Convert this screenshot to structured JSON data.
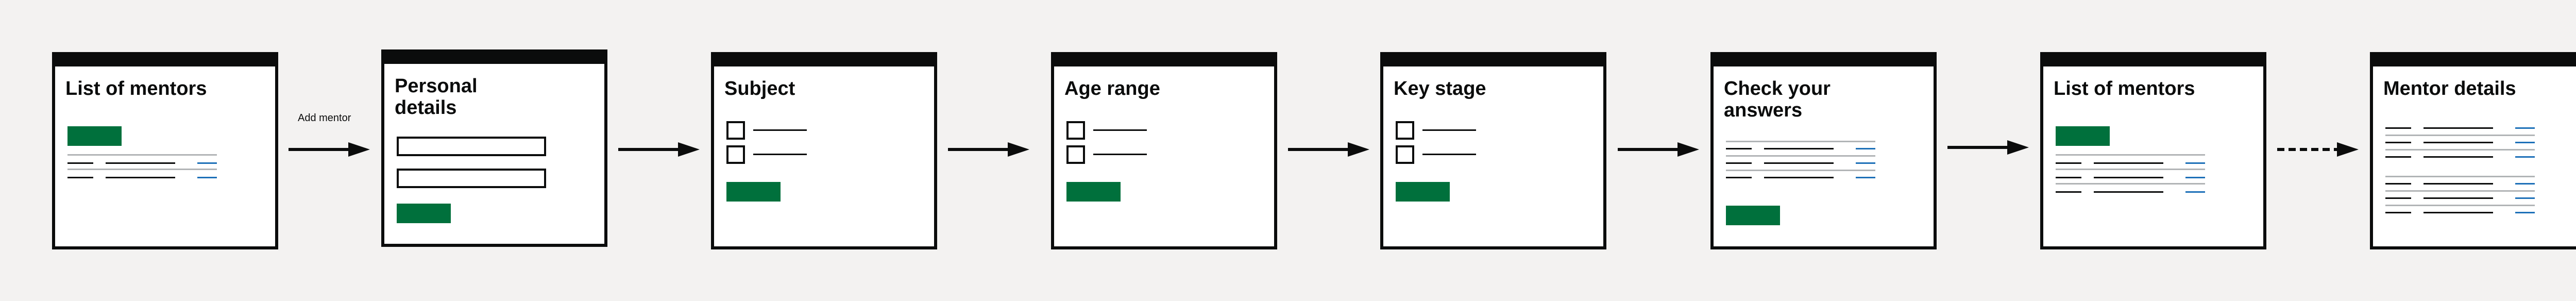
{
  "diagram": {
    "screens": [
      {
        "id": "list-of-mentors-1",
        "title": "List of mentors",
        "kind": "list"
      },
      {
        "id": "personal-details",
        "title": "Personal\ndetails",
        "kind": "form"
      },
      {
        "id": "subject",
        "title": "Subject",
        "kind": "checkboxes"
      },
      {
        "id": "age-range",
        "title": "Age range",
        "kind": "checkboxes"
      },
      {
        "id": "key-stage",
        "title": "Key stage",
        "kind": "checkboxes"
      },
      {
        "id": "check-your-answers",
        "title": "Check your\nanswers",
        "kind": "summary"
      },
      {
        "id": "list-of-mentors-2",
        "title": "List of mentors",
        "kind": "list"
      },
      {
        "id": "mentor-details",
        "title": "Mentor details",
        "kind": "details"
      }
    ],
    "arrows": [
      {
        "from": "list-of-mentors-1",
        "to": "personal-details",
        "label": "Add mentor",
        "style": "solid"
      },
      {
        "from": "personal-details",
        "to": "subject",
        "label": "",
        "style": "solid"
      },
      {
        "from": "subject",
        "to": "age-range",
        "label": "",
        "style": "solid"
      },
      {
        "from": "age-range",
        "to": "key-stage",
        "label": "",
        "style": "solid"
      },
      {
        "from": "key-stage",
        "to": "check-your-answers",
        "label": "",
        "style": "solid"
      },
      {
        "from": "check-your-answers",
        "to": "list-of-mentors-2",
        "label": "",
        "style": "solid"
      },
      {
        "from": "list-of-mentors-2",
        "to": "mentor-details",
        "label": "",
        "style": "dashed"
      }
    ],
    "colors": {
      "primary_button": "#00703c",
      "link": "#1d70b8",
      "border": "#0b0c0c",
      "divider": "#b1b4b6",
      "background": "#f3f2f1"
    }
  }
}
